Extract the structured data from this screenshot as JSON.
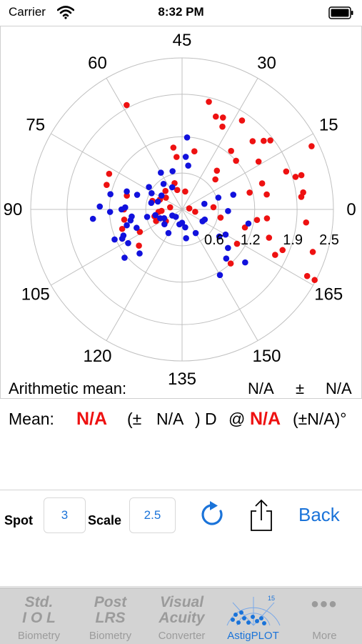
{
  "status": {
    "carrier": "Carrier",
    "time": "8:32 PM"
  },
  "plot": {
    "angle_labels": [
      "0",
      "15",
      "30",
      "45",
      "60",
      "75",
      "90",
      "105",
      "120",
      "135",
      "150",
      "165"
    ],
    "ring_labels": [
      "0.6",
      "1.2",
      "1.9",
      "2.5"
    ],
    "colors": {
      "red": "#ee1111",
      "blue": "#1111dd",
      "grid": "#c0c0c0"
    }
  },
  "chart_data": {
    "type": "scatter",
    "coordinate_system": "polar-double-angle",
    "angle_ticks": [
      0,
      15,
      30,
      45,
      60,
      75,
      90,
      105,
      120,
      135,
      150,
      165
    ],
    "radius_ticks": [
      0.6,
      1.2,
      1.9,
      2.5
    ],
    "rmax": 2.5,
    "series": [
      {
        "color": "#ee1111",
        "points": [
          [
            59,
            1.95
          ],
          [
            38,
            1.83
          ],
          [
            33,
            1.66
          ],
          [
            32,
            1.52
          ],
          [
            28,
            1.77
          ],
          [
            35,
            1.63
          ],
          [
            19,
            1.85
          ],
          [
            25,
            1.26
          ],
          [
            16,
            1.49
          ],
          [
            22,
            1.62
          ],
          [
            20,
            1.76
          ],
          [
            21,
            1.2
          ],
          [
            13,
            2.38
          ],
          [
            10,
            1.83
          ],
          [
            8,
            2.05
          ],
          [
            8,
            1.95
          ],
          [
            4,
            2.02
          ],
          [
            3,
            1.98
          ],
          [
            -3,
            2.06
          ],
          [
            -9,
            2.27
          ],
          [
            -14,
            2.34
          ],
          [
            -14,
            2.48
          ],
          [
            -11,
            1.79
          ],
          [
            -13,
            1.71
          ],
          [
            -9,
            1.51
          ],
          [
            -8,
            1.08
          ],
          [
            -6,
            0.65
          ],
          [
            -16,
            1.07
          ],
          [
            -24,
            1.2
          ],
          [
            -3,
            1.41
          ],
          [
            9,
            1.39
          ],
          [
            5,
            1.42
          ],
          [
            -4,
            1.25
          ],
          [
            7,
            1.15
          ],
          [
            2,
            0.52
          ],
          [
            4,
            0.12
          ],
          [
            24,
            0.86
          ],
          [
            21,
            0.74
          ],
          [
            48,
            0.87
          ],
          [
            40,
            0.3
          ],
          [
            49,
            1.03
          ],
          [
            39,
            0.98
          ],
          [
            53,
            0.45
          ],
          [
            52,
            0.33
          ],
          [
            77,
            1.34
          ],
          [
            81,
            1.31
          ],
          [
            83,
            0.94
          ],
          [
            90,
            0.96
          ],
          [
            95,
            0.97
          ],
          [
            97,
            0.47
          ],
          [
            110,
            0.93
          ],
          [
            104,
            0.79
          ],
          [
            99,
            1.04
          ],
          [
            103,
            1.1
          ],
          [
            82,
            0.51
          ],
          [
            78,
            0.4
          ],
          [
            72,
            0.33
          ],
          [
            66,
            0.41
          ],
          [
            92,
            0.34
          ],
          [
            93,
            0.39
          ],
          [
            102,
            0.47
          ],
          [
            108,
            0.33
          ],
          [
            85,
            0.2
          ],
          [
            -5,
            0.22
          ]
        ]
      },
      {
        "color": "#1111dd",
        "points": [
          [
            43,
            1.19
          ],
          [
            43,
            0.87
          ],
          [
            41,
            0.73
          ],
          [
            52,
            0.65
          ],
          [
            60,
            0.7
          ],
          [
            73,
            0.66
          ],
          [
            81,
            0.42
          ],
          [
            73,
            0.41
          ],
          [
            76,
            0.57
          ],
          [
            84,
            0.52
          ],
          [
            81,
            0.78
          ],
          [
            81,
            0.96
          ],
          [
            84,
            1.21
          ],
          [
            89,
            1.36
          ],
          [
            89,
            0.94
          ],
          [
            90,
            1.0
          ],
          [
            91,
            1.19
          ],
          [
            93,
            1.48
          ],
          [
            94,
            0.84
          ],
          [
            96,
            0.87
          ],
          [
            98,
            0.95
          ],
          [
            101,
            0.81
          ],
          [
            102,
            1.22
          ],
          [
            103,
            1.1
          ],
          [
            102,
            1.06
          ],
          [
            106,
            1.05
          ],
          [
            110,
            1.24
          ],
          [
            113,
            1.01
          ],
          [
            96,
            0.59
          ],
          [
            96,
            0.45
          ],
          [
            101,
            0.39
          ],
          [
            103,
            0.33
          ],
          [
            110,
            0.38
          ],
          [
            106,
            0.19
          ],
          [
            120,
            0.45
          ],
          [
            135,
            0.22
          ],
          [
            139,
            0.48
          ],
          [
            140,
            0.3
          ],
          [
            150,
            1.25
          ],
          [
            156,
            1.09
          ],
          [
            160,
            0.99
          ],
          [
            160,
            1.36
          ],
          [
            162,
            0.76
          ],
          [
            165,
            0.83
          ],
          [
            165,
            0.39
          ],
          [
            168,
            0.41
          ],
          [
            179,
            0.76
          ],
          [
            63,
            0.52
          ],
          [
            57,
            0.4
          ],
          [
            9,
            0.63
          ],
          [
            7,
            0.38
          ],
          [
            8,
            0.88
          ],
          [
            174,
            1.12
          ],
          [
            130,
            0.25
          ],
          [
            115,
            0.16
          ],
          [
            150,
            0.45
          ]
        ]
      }
    ]
  },
  "arith": {
    "label": "Arithmetic mean:",
    "value1": "N/A",
    "pm": "±",
    "value2": "N/A"
  },
  "mean": {
    "label": "Mean:",
    "value": "N/A",
    "open": "(±",
    "sd": "N/A",
    "close_d": ") D",
    "at": "@",
    "axis": "N/A",
    "axis_sd": "(±N/A)°"
  },
  "controls": {
    "spot_label": "Spot",
    "spot_value": "3",
    "scale_label": "Scale",
    "scale_value": "2.5",
    "back_label": "Back"
  },
  "tabs": [
    {
      "icon_line1": "Std.",
      "icon_line2": "I O L",
      "label": "Biometry"
    },
    {
      "icon_line1": "Post",
      "icon_line2": "LRS",
      "label": "Biometry"
    },
    {
      "icon_line1": "Visual",
      "icon_line2": "Acuity",
      "label": "Converter"
    },
    {
      "icon_text": "15",
      "label": "AstigPLOT"
    },
    {
      "icon_dots": "•••",
      "label": "More"
    }
  ]
}
